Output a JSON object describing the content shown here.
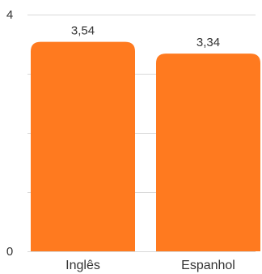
{
  "chart_data": {
    "type": "bar",
    "title": "",
    "xlabel": "",
    "ylabel": "",
    "categories": [
      "Inglês",
      "Espanhol"
    ],
    "values": [
      3.54,
      3.34
    ],
    "data_labels": [
      "3,54",
      "3,34"
    ],
    "ylim": [
      0,
      4
    ],
    "yticks": [
      0,
      1,
      2,
      3,
      4
    ],
    "ytick_labels": [
      "0",
      "",
      "",
      "",
      "4"
    ],
    "bar_color": "#FF7A1F",
    "grid": true,
    "legend": "none"
  }
}
